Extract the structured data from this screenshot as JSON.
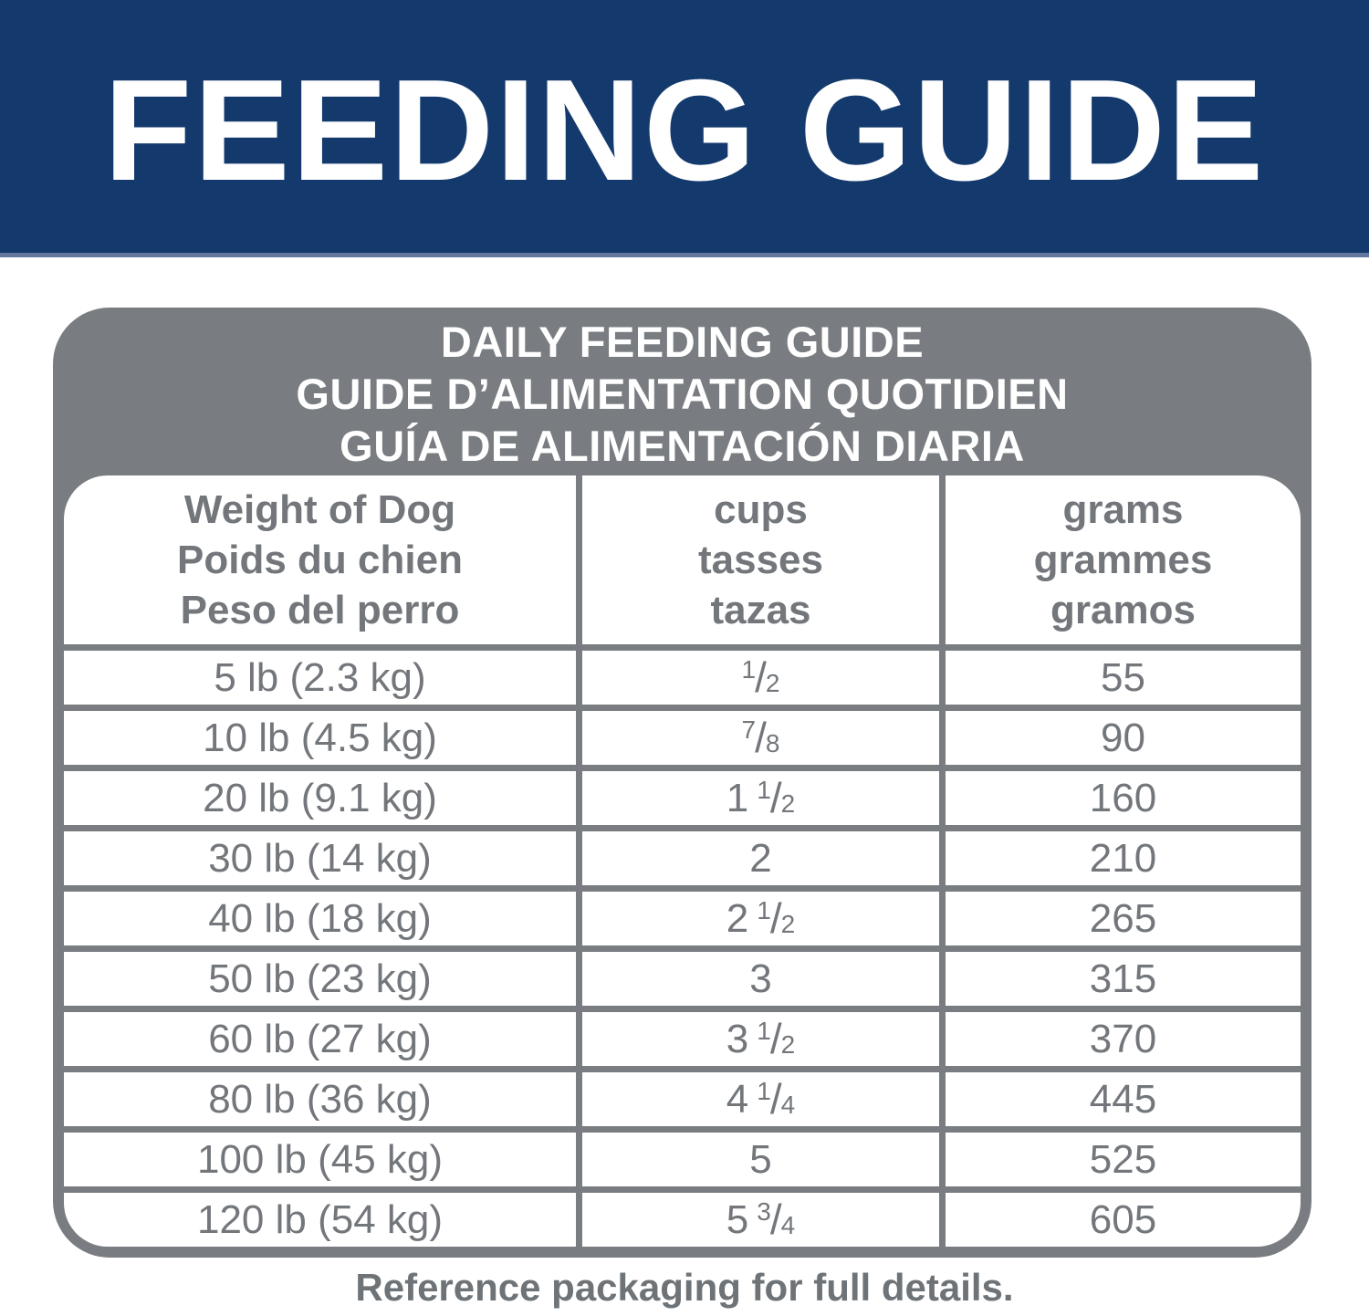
{
  "banner": {
    "title": "FEEDING GUIDE",
    "bg_color": "#143a6d",
    "accent_line_color": "#64779f"
  },
  "table": {
    "title_lines": [
      "DAILY FEEDING GUIDE",
      "GUIDE D’ALIMENTATION QUOTIDIEN",
      "GUÍA DE ALIMENTACIÓN DIARIA"
    ],
    "columns": [
      {
        "lines": [
          "Weight of Dog",
          "Poids du chien",
          "Peso del perro"
        ]
      },
      {
        "lines": [
          "cups",
          "tasses",
          "tazas"
        ]
      },
      {
        "lines": [
          "grams",
          "grammes",
          "gramos"
        ]
      }
    ],
    "rows": [
      {
        "weight": "5 lb (2.3 kg)",
        "cups": "1/2",
        "grams": "55"
      },
      {
        "weight": "10 lb (4.5 kg)",
        "cups": "7/8",
        "grams": "90"
      },
      {
        "weight": "20 lb (9.1 kg)",
        "cups": "1 1/2",
        "grams": "160"
      },
      {
        "weight": "30 lb (14 kg)",
        "cups": "2",
        "grams": "210"
      },
      {
        "weight": "40 lb (18 kg)",
        "cups": "2 1/2",
        "grams": "265"
      },
      {
        "weight": "50 lb (23 kg)",
        "cups": "3",
        "grams": "315"
      },
      {
        "weight": "60 lb (27 kg)",
        "cups": "3 1/2",
        "grams": "370"
      },
      {
        "weight": "80 lb (36 kg)",
        "cups": "4 1/4",
        "grams": "445"
      },
      {
        "weight": "100 lb (45 kg)",
        "cups": "5",
        "grams": "525"
      },
      {
        "weight": "120 lb (54 kg)",
        "cups": "5 3/4",
        "grams": "605"
      }
    ],
    "card_color": "#797d81",
    "text_color": "#73777b"
  },
  "footer": {
    "note": "Reference packaging for full details."
  }
}
